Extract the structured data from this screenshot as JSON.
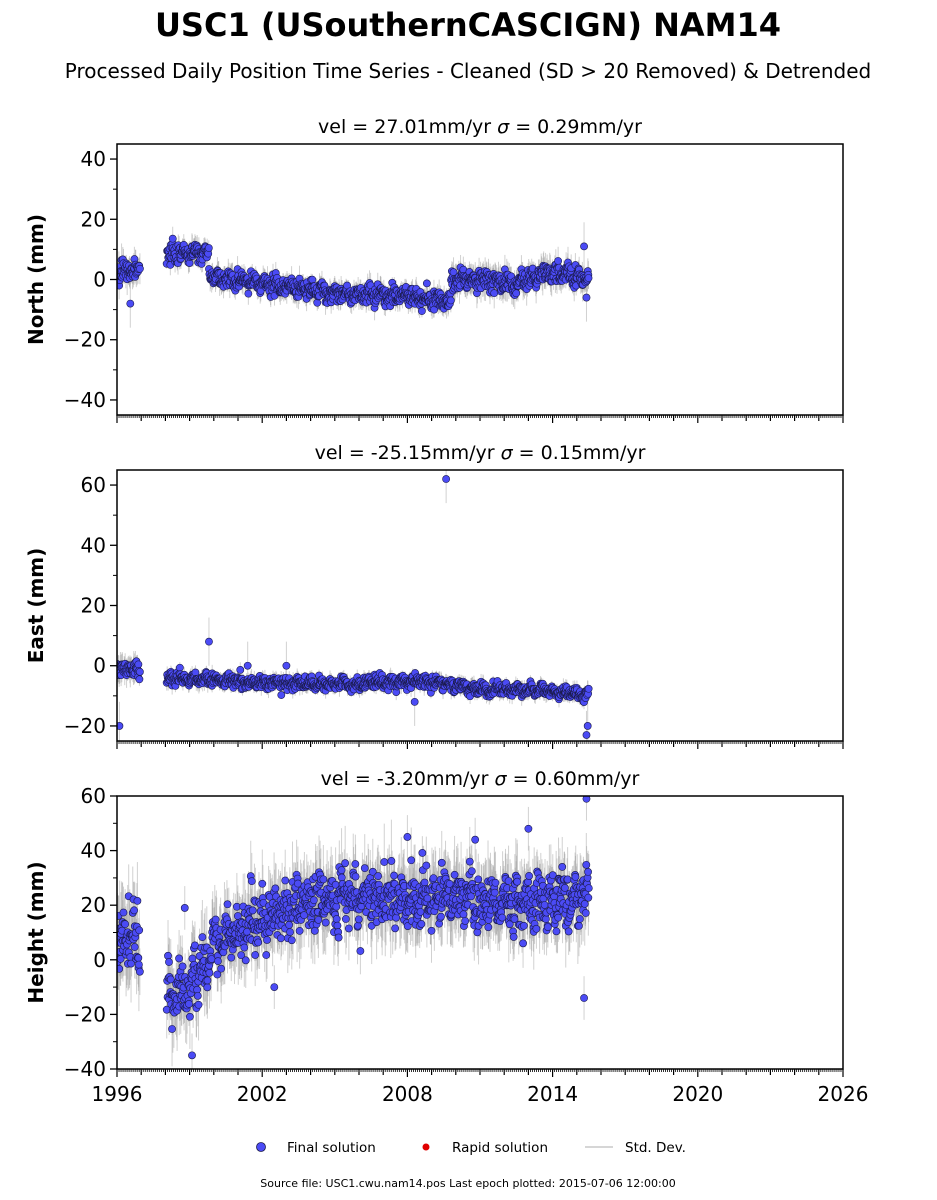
{
  "figure": {
    "title": "USC1 (USouthernCASCIGN) NAM14",
    "subtitle": "Processed Daily Position Time Series - Cleaned (SD > 20 Removed) & Detrended",
    "source_note": "Source file: USC1.cwu.nam14.pos  Last epoch plotted: 2015-07-06 12:00:00"
  },
  "legend": {
    "final": "Final solution",
    "rapid": "Rapid solution",
    "sd": "Std. Dev."
  },
  "colors": {
    "final": "#4b4bf5",
    "final_edge": "#1a1a4a",
    "rapid": "#e00000",
    "sd": "#9a9a9a"
  },
  "chart_data": [
    {
      "type": "scatter",
      "panel": "north",
      "title_vel": "vel = 27.01mm/yr",
      "title_sigma": "= 0.29mm/yr",
      "ylabel": "North (mm)",
      "xlim": [
        1996,
        2026
      ],
      "ylim": [
        -45,
        45
      ],
      "yticks": [
        -40,
        -20,
        0,
        20,
        40
      ],
      "ytick_labels": [
        "−40",
        "−20",
        "0",
        "20",
        "40"
      ],
      "series": [
        {
          "segments": [
            {
              "x0": 1996.0,
              "x1": 1996.95,
              "trend": [
                [
                  1996.0,
                  3
                ],
                [
                  1996.95,
                  3
                ]
              ],
              "noise": 2.5
            },
            {
              "x0": 1998.05,
              "x1": 1999.8,
              "trend": [
                [
                  1998.05,
                  8
                ],
                [
                  1999.8,
                  9
                ]
              ],
              "noise": 2.0
            },
            {
              "x0": 1999.8,
              "x1": 2009.8,
              "trend": [
                [
                  1999.8,
                  1
                ],
                [
                  2002.5,
                  -2
                ],
                [
                  2005.5,
                  -5
                ],
                [
                  2007.5,
                  -5
                ],
                [
                  2009.5,
                  -7
                ]
              ],
              "noise": 2.0
            },
            {
              "x0": 2009.8,
              "x1": 2015.5,
              "trend": [
                [
                  2009.8,
                  0
                ],
                [
                  2011.5,
                  0
                ],
                [
                  2012.5,
                  -2
                ],
                [
                  2013.5,
                  2
                ],
                [
                  2014.5,
                  2
                ],
                [
                  2015.5,
                  0
                ]
              ],
              "noise": 2.5
            }
          ],
          "outliers": [
            [
              1996.55,
              -8
            ],
            [
              2015.3,
              11
            ],
            [
              2015.4,
              -6
            ]
          ]
        }
      ]
    },
    {
      "type": "scatter",
      "panel": "east",
      "title_vel": "vel = -25.15mm/yr",
      "title_sigma": "= 0.15mm/yr",
      "ylabel": "East (mm)",
      "xlim": [
        1996,
        2026
      ],
      "ylim": [
        -25,
        65
      ],
      "yticks": [
        -20,
        0,
        20,
        40,
        60
      ],
      "ytick_labels": [
        "−20",
        "0",
        "20",
        "40",
        "60"
      ],
      "series": [
        {
          "segments": [
            {
              "x0": 1996.0,
              "x1": 1996.95,
              "trend": [
                [
                  1996.0,
                  -1
                ],
                [
                  1996.95,
                  -1
                ]
              ],
              "noise": 2.2
            },
            {
              "x0": 1998.05,
              "x1": 2015.5,
              "trend": [
                [
                  1998.05,
                  -4
                ],
                [
                  2003.0,
                  -6
                ],
                [
                  2006.0,
                  -6
                ],
                [
                  2008.5,
                  -5
                ],
                [
                  2011.0,
                  -8
                ],
                [
                  2013.5,
                  -8
                ],
                [
                  2015.5,
                  -10
                ]
              ],
              "noise": 1.4
            }
          ],
          "outliers": [
            [
              2009.6,
              62
            ],
            [
              1999.8,
              8
            ],
            [
              1996.1,
              -20
            ],
            [
              2003.0,
              0
            ],
            [
              2008.3,
              -12
            ],
            [
              2015.4,
              -23
            ],
            [
              2001.4,
              0
            ],
            [
              2015.45,
              -20
            ]
          ]
        }
      ]
    },
    {
      "type": "scatter",
      "panel": "height",
      "title_vel": "vel = -3.20mm/yr",
      "title_sigma": "= 0.60mm/yr",
      "ylabel": "Height (mm)",
      "xlim": [
        1996,
        2026
      ],
      "ylim": [
        -40,
        60
      ],
      "yticks": [
        -40,
        -20,
        0,
        20,
        40,
        60
      ],
      "ytick_labels": [
        "−40",
        "−20",
        "0",
        "20",
        "40",
        "60"
      ],
      "xticks": [
        1996,
        2002,
        2008,
        2014,
        2020,
        2026
      ],
      "xtick_labels": [
        "1996",
        "2002",
        "2008",
        "2014",
        "2020",
        "2026"
      ],
      "series": [
        {
          "segments": [
            {
              "x0": 1996.0,
              "x1": 1996.95,
              "trend": [
                [
                  1996.0,
                  5
                ],
                [
                  1996.95,
                  8
                ]
              ],
              "noise": 8
            },
            {
              "x0": 1998.05,
              "x1": 2015.5,
              "trend": [
                [
                  1998.05,
                  -12
                ],
                [
                  1999.0,
                  -12
                ],
                [
                  2000.0,
                  5
                ],
                [
                  2002.0,
                  15
                ],
                [
                  2004.5,
                  22
                ],
                [
                  2007.0,
                  23
                ],
                [
                  2010.0,
                  22
                ],
                [
                  2013.0,
                  20
                ],
                [
                  2015.5,
                  22
                ]
              ],
              "noise": 7
            }
          ],
          "outliers": [
            [
              1998.8,
              19
            ],
            [
              1999.1,
              -35
            ],
            [
              2008.0,
              45
            ],
            [
              2015.4,
              59
            ],
            [
              2013.0,
              48
            ],
            [
              2015.3,
              -14
            ],
            [
              2002.5,
              -10
            ],
            [
              2010.8,
              44
            ]
          ]
        }
      ]
    }
  ]
}
